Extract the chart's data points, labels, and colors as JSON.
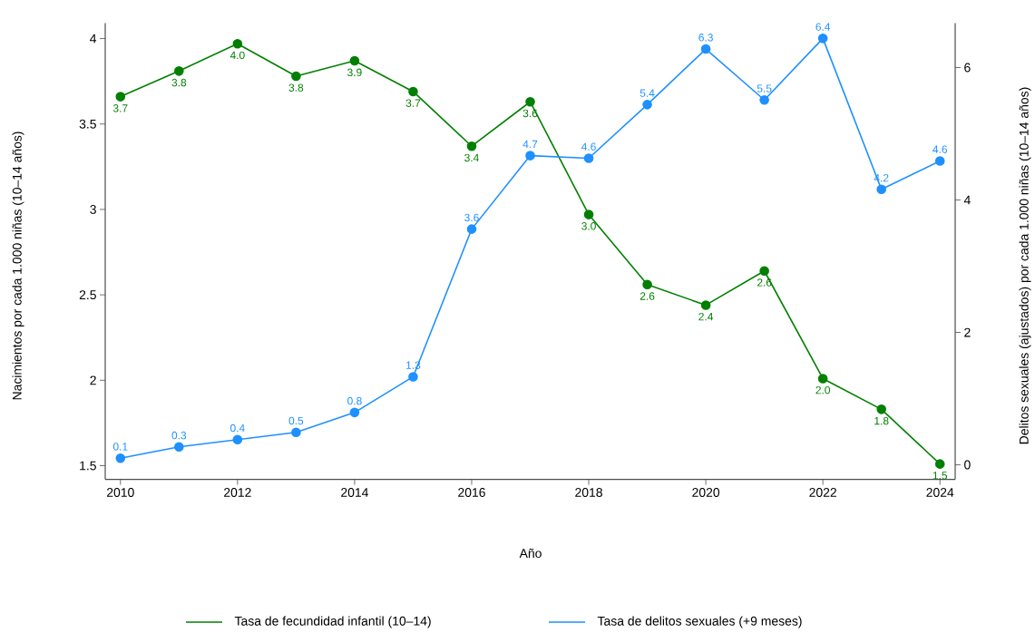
{
  "chart_data": {
    "type": "line",
    "xlabel": "Año",
    "ylabel": "Nacimientos por cada 1.000 niñas (10–14 años)",
    "y2label": "Delitos sexuales (ajustados) por cada 1.000 niñas (10–14 años)",
    "x": [
      2010,
      2011,
      2012,
      2013,
      2014,
      2015,
      2016,
      2017,
      2018,
      2019,
      2020,
      2021,
      2022,
      2023,
      2024
    ],
    "series": [
      {
        "name": "Tasa de fecundidad infantil (10–14)",
        "color": "#008000",
        "values": [
          3.66,
          3.81,
          3.97,
          3.78,
          3.87,
          3.69,
          3.37,
          3.63,
          2.97,
          2.56,
          2.44,
          2.64,
          2.01,
          1.83,
          1.51
        ],
        "value_labels": [
          "3.7",
          "3.8",
          "4.0",
          "3.8",
          "3.9",
          "3.7",
          "3.4",
          "3.6",
          "3.0",
          "2.6",
          "2.4",
          "2.6",
          "2.0",
          "1.8",
          "1.5"
        ]
      },
      {
        "name": "Tasa de delitos sexuales (+9 meses)",
        "color": "#1e90ff",
        "axis": "y2",
        "values": [
          0.1,
          0.27,
          0.38,
          0.49,
          0.79,
          1.33,
          3.56,
          4.67,
          4.63,
          5.44,
          6.28,
          5.51,
          6.44,
          4.16,
          4.59
        ],
        "value_labels": [
          "0.1",
          "0.3",
          "0.4",
          "0.5",
          "0.8",
          "1.3",
          "3.6",
          "4.7",
          "4.6",
          "5.4",
          "6.3",
          "5.5",
          "6.4",
          "4.2",
          "4.6"
        ]
      }
    ],
    "xlim": [
      2009.74,
      2024.26
    ],
    "xticks": [
      2010,
      2012,
      2014,
      2016,
      2018,
      2020,
      2022,
      2024
    ],
    "ylim": [
      1.42,
      4.09
    ],
    "yticks": [
      1.5,
      2,
      2.5,
      3,
      3.5,
      4
    ],
    "y2lim": [
      -0.22,
      6.67
    ],
    "y2ticks": [
      0,
      2,
      4,
      6
    ],
    "legend": "bottom",
    "grid": false,
    "marker": "circle",
    "line_style": "solid"
  }
}
